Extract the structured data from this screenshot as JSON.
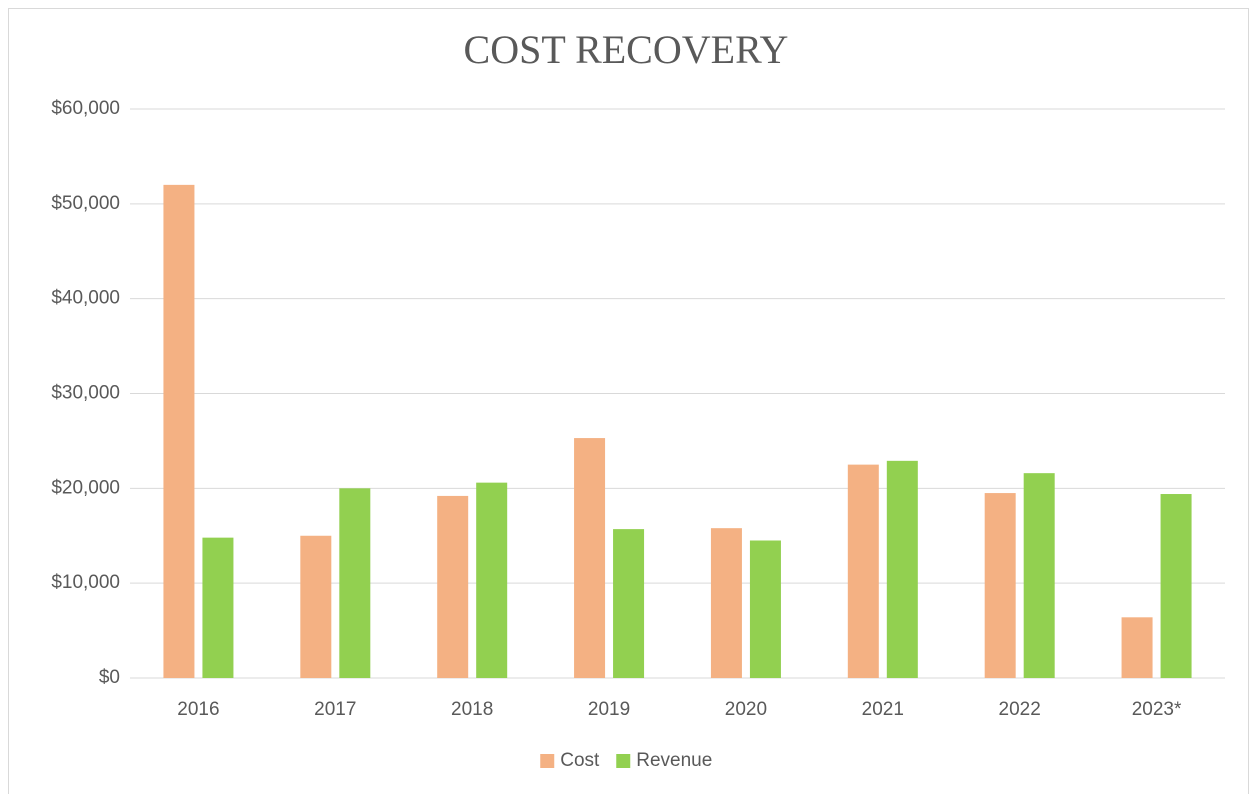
{
  "chart_data": {
    "type": "bar",
    "title": "COST RECOVERY",
    "categories": [
      "2016",
      "2017",
      "2018",
      "2019",
      "2020",
      "2021",
      "2022",
      "2023*"
    ],
    "series": [
      {
        "name": "Cost",
        "color": "#f4b183",
        "values": [
          52000,
          15000,
          19200,
          25300,
          15800,
          22500,
          19500,
          6400
        ]
      },
      {
        "name": "Revenue",
        "color": "#92d050",
        "values": [
          14800,
          20000,
          20600,
          15700,
          14500,
          22900,
          21600,
          19400
        ]
      }
    ],
    "ylim": [
      0,
      60000
    ],
    "yticks": [
      {
        "value": 0,
        "label": "$0"
      },
      {
        "value": 10000,
        "label": "$10,000"
      },
      {
        "value": 20000,
        "label": "$20,000"
      },
      {
        "value": 30000,
        "label": "$30,000"
      },
      {
        "value": 40000,
        "label": "$40,000"
      },
      {
        "value": 50000,
        "label": "$50,000"
      },
      {
        "value": 60000,
        "label": "$60,000"
      }
    ],
    "grid": true,
    "legend": "bottom"
  }
}
